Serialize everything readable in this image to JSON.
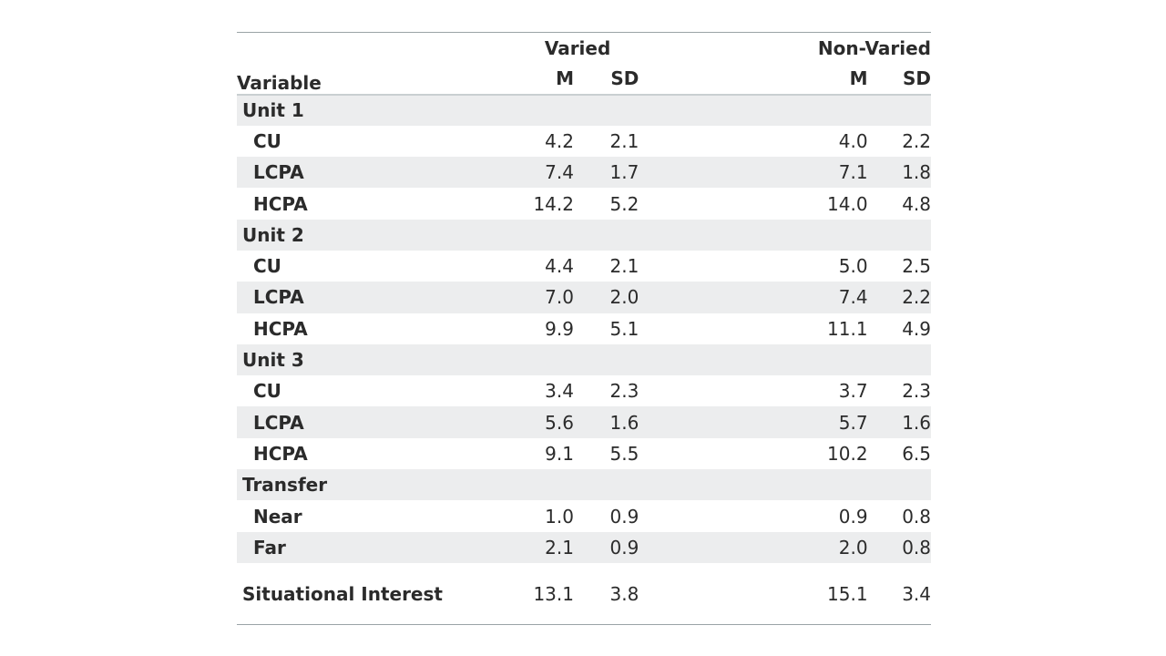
{
  "header": {
    "variable_label": "Variable",
    "group_varied": "Varied",
    "group_nonvaried": "Non-Varied",
    "m_label": "M",
    "sd_label": "SD"
  },
  "rows": [
    {
      "type": "section",
      "label": "Unit 1"
    },
    {
      "type": "data",
      "label": "CU",
      "varied_m": "4.2",
      "varied_sd": "2.1",
      "nonvaried_m": "4.0",
      "nonvaried_sd": "2.2"
    },
    {
      "type": "data",
      "label": "LCPA",
      "varied_m": "7.4",
      "varied_sd": "1.7",
      "nonvaried_m": "7.1",
      "nonvaried_sd": "1.8"
    },
    {
      "type": "data",
      "label": "HCPA",
      "varied_m": "14.2",
      "varied_sd": "5.2",
      "nonvaried_m": "14.0",
      "nonvaried_sd": "4.8"
    },
    {
      "type": "section",
      "label": "Unit 2"
    },
    {
      "type": "data",
      "label": "CU",
      "varied_m": "4.4",
      "varied_sd": "2.1",
      "nonvaried_m": "5.0",
      "nonvaried_sd": "2.5"
    },
    {
      "type": "data",
      "label": "LCPA",
      "varied_m": "7.0",
      "varied_sd": "2.0",
      "nonvaried_m": "7.4",
      "nonvaried_sd": "2.2"
    },
    {
      "type": "data",
      "label": "HCPA",
      "varied_m": "9.9",
      "varied_sd": "5.1",
      "nonvaried_m": "11.1",
      "nonvaried_sd": "4.9"
    },
    {
      "type": "section",
      "label": "Unit 3"
    },
    {
      "type": "data",
      "label": "CU",
      "varied_m": "3.4",
      "varied_sd": "2.3",
      "nonvaried_m": "3.7",
      "nonvaried_sd": "2.3"
    },
    {
      "type": "data",
      "label": "LCPA",
      "varied_m": "5.6",
      "varied_sd": "1.6",
      "nonvaried_m": "5.7",
      "nonvaried_sd": "1.6"
    },
    {
      "type": "data",
      "label": "HCPA",
      "varied_m": "9.1",
      "varied_sd": "5.5",
      "nonvaried_m": "10.2",
      "nonvaried_sd": "6.5"
    },
    {
      "type": "section",
      "label": "Transfer"
    },
    {
      "type": "data",
      "label": "Near",
      "varied_m": "1.0",
      "varied_sd": "0.9",
      "nonvaried_m": "0.9",
      "nonvaried_sd": "0.8"
    },
    {
      "type": "data",
      "label": "Far",
      "varied_m": "2.1",
      "varied_sd": "0.9",
      "nonvaried_m": "2.0",
      "nonvaried_sd": "0.8"
    },
    {
      "type": "tall",
      "label": "Situational Interest",
      "varied_m": "13.1",
      "varied_sd": "3.8",
      "nonvaried_m": "15.1",
      "nonvaried_sd": "3.4"
    }
  ]
}
